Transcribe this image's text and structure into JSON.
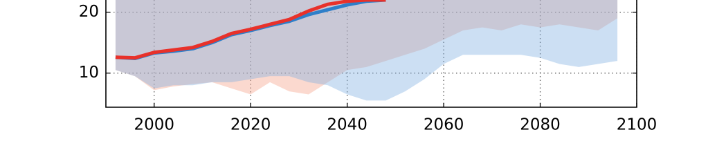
{
  "chart_data": {
    "type": "line",
    "x": [
      1992,
      1996,
      2000,
      2004,
      2008,
      2012,
      2016,
      2020,
      2024,
      2028,
      2032,
      2036,
      2040,
      2044,
      2048,
      2052,
      2056,
      2060,
      2064,
      2068,
      2072,
      2076,
      2080,
      2084,
      2088,
      2092,
      2096
    ],
    "bands": [
      {
        "color": "#f4a088",
        "lower": [
          10.5,
          9.5,
          7.2,
          7.8,
          8.2,
          8.5,
          7.5,
          6.5,
          8.5,
          7,
          6.5,
          8.5,
          10.5,
          11,
          12,
          13,
          14,
          15.5,
          17,
          17.5,
          17,
          18,
          17.5,
          18,
          17.5,
          17,
          19
        ],
        "upper": [
          22,
          22,
          22,
          22,
          22,
          22,
          22,
          22,
          22,
          22,
          22,
          22,
          22,
          22,
          22,
          22,
          22,
          22,
          22,
          22,
          22,
          22,
          22,
          22,
          22,
          22,
          22
        ]
      },
      {
        "color": "#7fb0e0",
        "lower": [
          10.5,
          9.5,
          7.5,
          8,
          8,
          8.5,
          8.5,
          9,
          9.5,
          9.5,
          8.5,
          8,
          6.5,
          5.5,
          5.5,
          7,
          9,
          11.5,
          13,
          13,
          13,
          13,
          12.5,
          11.5,
          11,
          11.5,
          12
        ],
        "upper": [
          22,
          22,
          22,
          22,
          22,
          22,
          22,
          22,
          22,
          22,
          22,
          22,
          22,
          22,
          22,
          22,
          22,
          22,
          22,
          22,
          22,
          22,
          22,
          22,
          22,
          22,
          22
        ]
      }
    ],
    "series": [
      {
        "color": "#2e7fc9",
        "values": [
          12.6,
          12.4,
          13.3,
          13.6,
          14.0,
          15.0,
          16.3,
          17.0,
          17.8,
          18.5,
          19.6,
          20.4,
          21.2,
          21.8,
          22,
          null,
          null,
          null,
          null,
          null,
          null,
          null,
          null,
          null,
          null,
          null,
          null
        ]
      },
      {
        "color": "#e8312a",
        "values": [
          12.6,
          12.5,
          13.4,
          13.8,
          14.2,
          15.2,
          16.5,
          17.2,
          18.0,
          18.8,
          20.2,
          21.3,
          21.8,
          22,
          22,
          null,
          null,
          null,
          null,
          null,
          null,
          null,
          null,
          null,
          null,
          null,
          null
        ]
      }
    ],
    "xlim": [
      1990,
      2100
    ],
    "ylim": [
      4.4,
      22
    ],
    "xticks": [
      2000,
      2020,
      2040,
      2060,
      2080,
      2100
    ],
    "yticks": [
      10,
      20
    ],
    "grid": true
  }
}
